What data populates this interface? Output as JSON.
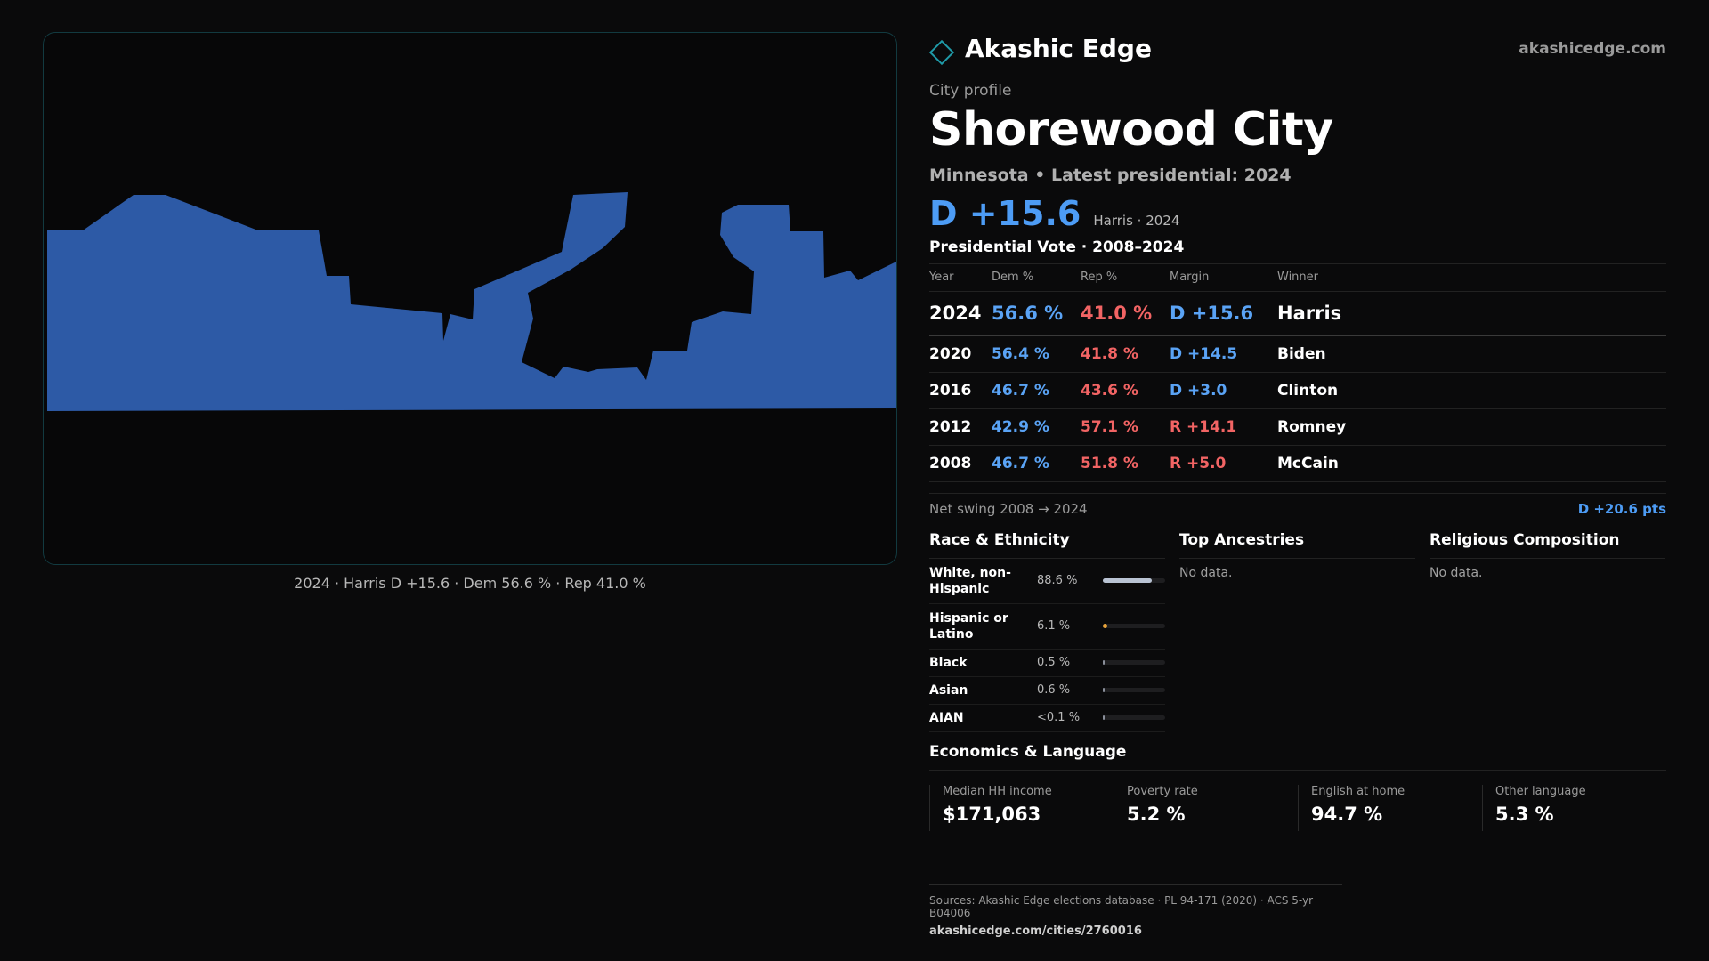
{
  "brand": {
    "name": "Akashic Edge",
    "url": "akashicedge.com"
  },
  "profile": {
    "eyebrow": "City profile",
    "city": "Shorewood City",
    "subline": "Minnesota • Latest presidential: 2024",
    "margin": "D +15.6",
    "margin_sub": "Harris · 2024"
  },
  "map": {
    "caption": "2024 · Harris D +15.6 · Dem 56.6 % · Rep 41.0 %",
    "fill_color": "#2d5aa6"
  },
  "vote": {
    "title": "Presidential Vote · 2008–2024",
    "headers": [
      "Year",
      "Dem %",
      "Rep %",
      "Margin",
      "Winner"
    ],
    "rows": [
      {
        "year": "2024",
        "dem": "56.6 %",
        "rep": "41.0 %",
        "margin": "D +15.6",
        "party": "D",
        "winner": "Harris"
      },
      {
        "year": "2020",
        "dem": "56.4 %",
        "rep": "41.8 %",
        "margin": "D +14.5",
        "party": "D",
        "winner": "Biden"
      },
      {
        "year": "2016",
        "dem": "46.7 %",
        "rep": "43.6 %",
        "margin": "D +3.0",
        "party": "D",
        "winner": "Clinton"
      },
      {
        "year": "2012",
        "dem": "42.9 %",
        "rep": "57.1 %",
        "margin": "R +14.1",
        "party": "R",
        "winner": "Romney"
      },
      {
        "year": "2008",
        "dem": "46.7 %",
        "rep": "51.8 %",
        "margin": "R +5.0",
        "party": "R",
        "winner": "McCain"
      }
    ],
    "swing_label": "Net swing 2008 → 2024",
    "swing_value": "D +20.6 pts"
  },
  "race": {
    "title": "Race & Ethnicity",
    "rows": [
      {
        "label": "White, non-Hispanic",
        "value": "88.6 %",
        "pct": 88.6,
        "color": "#b9c3d3"
      },
      {
        "label": "Hispanic or Latino",
        "value": "6.1 %",
        "pct": 6.1,
        "color": "#e8a33a"
      },
      {
        "label": "Black",
        "value": "0.5 %",
        "pct": 0.5,
        "color": "#8a8f9a"
      },
      {
        "label": "Asian",
        "value": "0.6 %",
        "pct": 0.6,
        "color": "#8a8f9a"
      },
      {
        "label": "AIAN",
        "value": "<0.1 %",
        "pct": 0.05,
        "color": "#8a8f9a"
      }
    ]
  },
  "ancestries": {
    "title": "Top Ancestries",
    "empty": "No data."
  },
  "religion": {
    "title": "Religious Composition",
    "empty": "No data."
  },
  "economics": {
    "title": "Economics & Language",
    "cards": [
      {
        "label": "Median HH income",
        "value": "$171,063"
      },
      {
        "label": "Poverty rate",
        "value": "5.2 %"
      },
      {
        "label": "English at home",
        "value": "94.7 %"
      },
      {
        "label": "Other language",
        "value": "5.3 %"
      }
    ]
  },
  "footer": {
    "sources": "Sources: Akashic Edge elections database · PL 94-171 (2020) · ACS 5-yr B04006",
    "url": "akashicedge.com/cities/2760016"
  }
}
